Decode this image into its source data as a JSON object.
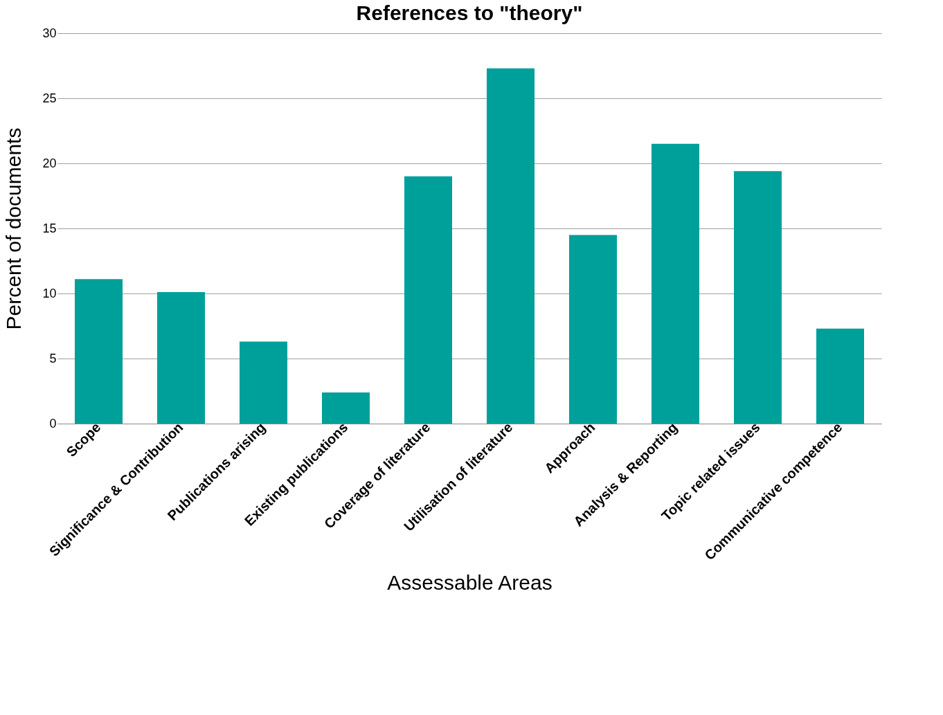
{
  "chart_data": {
    "type": "bar",
    "title": "References to \"theory\"",
    "xlabel": "Assessable Areas",
    "ylabel": "Percent of documents",
    "categories": [
      "Scope",
      "Significance & Contribution",
      "Publications arising",
      "Existing publications",
      "Coverage of literature",
      "Utilisation of literature",
      "Approach",
      "Analysis & Reporting",
      "Topic related issues",
      "Communicative competence"
    ],
    "values": [
      11.1,
      10.1,
      6.3,
      2.4,
      19.0,
      27.3,
      14.5,
      21.5,
      19.4,
      7.3
    ],
    "color": "#00a09a",
    "ylim": [
      0,
      30
    ],
    "yticks": [
      0,
      5,
      10,
      15,
      20,
      25,
      30
    ],
    "grid": "y"
  }
}
